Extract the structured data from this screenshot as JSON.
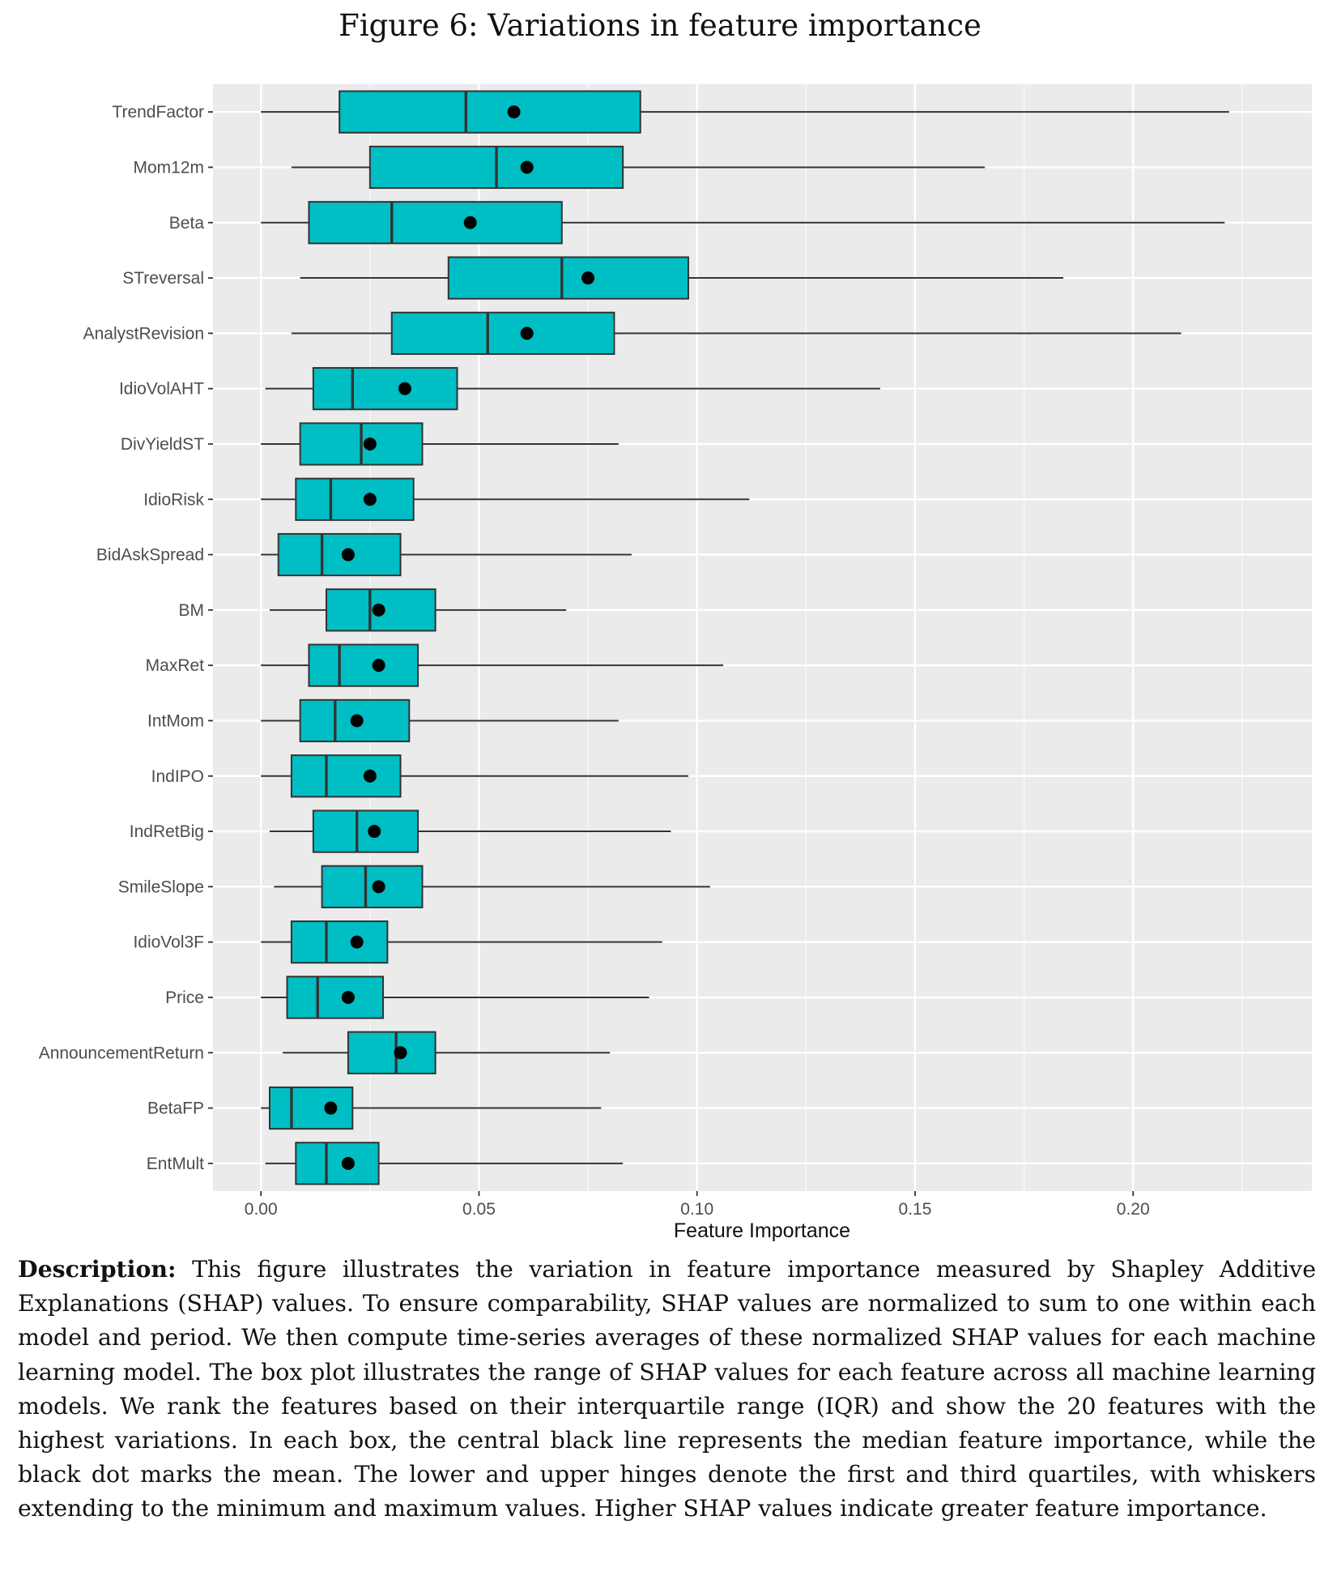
{
  "figure_title": "Figure 6: Variations in feature importance",
  "chart_data": {
    "type": "box",
    "orientation": "horizontal",
    "xlabel": "Feature Importance",
    "ylabel": "",
    "xlim": [
      -0.011,
      0.241
    ],
    "xticks": [
      0.0,
      0.05,
      0.1,
      0.15,
      0.2
    ],
    "xtick_labels": [
      "0.00",
      "0.05",
      "0.10",
      "0.15",
      "0.20"
    ],
    "grid": true,
    "box_color": "#00bfc4",
    "panel_color": "#ebebeb",
    "categories": [
      "TrendFactor",
      "Mom12m",
      "Beta",
      "STreversal",
      "AnalystRevision",
      "IdioVolAHT",
      "DivYieldST",
      "IdioRisk",
      "BidAskSpread",
      "BM",
      "MaxRet",
      "IntMom",
      "IndIPO",
      "IndRetBig",
      "SmileSlope",
      "IdioVol3F",
      "Price",
      "AnnouncementReturn",
      "BetaFP",
      "EntMult"
    ],
    "boxes": [
      {
        "min": 0.0,
        "q1": 0.018,
        "median": 0.047,
        "q3": 0.087,
        "max": 0.222,
        "mean": 0.058
      },
      {
        "min": 0.007,
        "q1": 0.025,
        "median": 0.054,
        "q3": 0.083,
        "max": 0.166,
        "mean": 0.061
      },
      {
        "min": 0.0,
        "q1": 0.011,
        "median": 0.03,
        "q3": 0.069,
        "max": 0.221,
        "mean": 0.048
      },
      {
        "min": 0.009,
        "q1": 0.043,
        "median": 0.069,
        "q3": 0.098,
        "max": 0.184,
        "mean": 0.075
      },
      {
        "min": 0.007,
        "q1": 0.03,
        "median": 0.052,
        "q3": 0.081,
        "max": 0.211,
        "mean": 0.061
      },
      {
        "min": 0.001,
        "q1": 0.012,
        "median": 0.021,
        "q3": 0.045,
        "max": 0.142,
        "mean": 0.033
      },
      {
        "min": 0.0,
        "q1": 0.009,
        "median": 0.023,
        "q3": 0.037,
        "max": 0.082,
        "mean": 0.025
      },
      {
        "min": 0.0,
        "q1": 0.008,
        "median": 0.016,
        "q3": 0.035,
        "max": 0.112,
        "mean": 0.025
      },
      {
        "min": 0.0,
        "q1": 0.004,
        "median": 0.014,
        "q3": 0.032,
        "max": 0.085,
        "mean": 0.02
      },
      {
        "min": 0.002,
        "q1": 0.015,
        "median": 0.025,
        "q3": 0.04,
        "max": 0.07,
        "mean": 0.027
      },
      {
        "min": 0.0,
        "q1": 0.011,
        "median": 0.018,
        "q3": 0.036,
        "max": 0.106,
        "mean": 0.027
      },
      {
        "min": 0.0,
        "q1": 0.009,
        "median": 0.017,
        "q3": 0.034,
        "max": 0.082,
        "mean": 0.022
      },
      {
        "min": 0.0,
        "q1": 0.007,
        "median": 0.015,
        "q3": 0.032,
        "max": 0.098,
        "mean": 0.025
      },
      {
        "min": 0.002,
        "q1": 0.012,
        "median": 0.022,
        "q3": 0.036,
        "max": 0.094,
        "mean": 0.026
      },
      {
        "min": 0.003,
        "q1": 0.014,
        "median": 0.024,
        "q3": 0.037,
        "max": 0.103,
        "mean": 0.027
      },
      {
        "min": 0.0,
        "q1": 0.007,
        "median": 0.015,
        "q3": 0.029,
        "max": 0.092,
        "mean": 0.022
      },
      {
        "min": 0.0,
        "q1": 0.006,
        "median": 0.013,
        "q3": 0.028,
        "max": 0.089,
        "mean": 0.02
      },
      {
        "min": 0.005,
        "q1": 0.02,
        "median": 0.031,
        "q3": 0.04,
        "max": 0.08,
        "mean": 0.032
      },
      {
        "min": 0.0,
        "q1": 0.002,
        "median": 0.007,
        "q3": 0.021,
        "max": 0.078,
        "mean": 0.016
      },
      {
        "min": 0.001,
        "q1": 0.008,
        "median": 0.015,
        "q3": 0.027,
        "max": 0.083,
        "mean": 0.02
      }
    ]
  },
  "description": {
    "label": "Description:",
    "text": " This figure illustrates the variation in feature importance measured by Shapley Additive Explanations (SHAP) values. To ensure comparability, SHAP values are normalized to sum to one within each model and period. We then compute time-series averages of these normalized SHAP values for each machine learning model. The box plot illustrates the range of SHAP values for each feature across all machine learning models. We rank the features based on their interquartile range (IQR) and show the 20 features with the highest variations. In each box, the central black line represents the median feature importance, while the black dot marks the mean. The lower and upper hinges denote the first and third quartiles, with whiskers extending to the minimum and maximum values. Higher SHAP values indicate greater feature importance."
  }
}
